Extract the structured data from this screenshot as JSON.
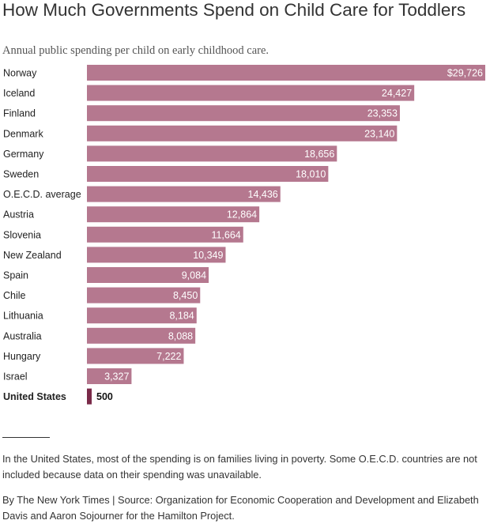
{
  "header": {
    "title": "How Much Governments Spend on Child Care for Toddlers",
    "subtitle": "Annual public spending per child on early childhood care."
  },
  "chart_data": {
    "type": "bar",
    "orientation": "horizontal",
    "categories": [
      "Norway",
      "Iceland",
      "Finland",
      "Denmark",
      "Germany",
      "Sweden",
      "O.E.C.D. average",
      "Austria",
      "Slovenia",
      "New Zealand",
      "Spain",
      "Chile",
      "Lithuania",
      "Australia",
      "Hungary",
      "Israel",
      "United States"
    ],
    "values": [
      29726,
      24427,
      23353,
      23140,
      18656,
      18010,
      14436,
      12864,
      11664,
      10349,
      9084,
      8450,
      8184,
      8088,
      7222,
      3327,
      500
    ],
    "value_labels": [
      "$29,726",
      "24,427",
      "23,353",
      "23,140",
      "18,656",
      "18,010",
      "14,436",
      "12,864",
      "11,664",
      "10,349",
      "9,084",
      "8,450",
      "8,184",
      "8,088",
      "7,222",
      "3,327",
      "500"
    ],
    "highlight": "United States",
    "colors": {
      "bar": "#b5788f",
      "highlight": "#7a2a49"
    },
    "xlim": [
      0,
      29726
    ],
    "grid": false,
    "legend": "none"
  },
  "footer": {
    "note": "In the United States, most of the spending is on families living in poverty. Some O.E.C.D. countries are not included because data on their spending was unavailable.",
    "source": "By The New York Times | Source: Organization for Economic Cooperation and Development and Elizabeth Davis and Aaron Sojourner for the Hamilton Project."
  }
}
